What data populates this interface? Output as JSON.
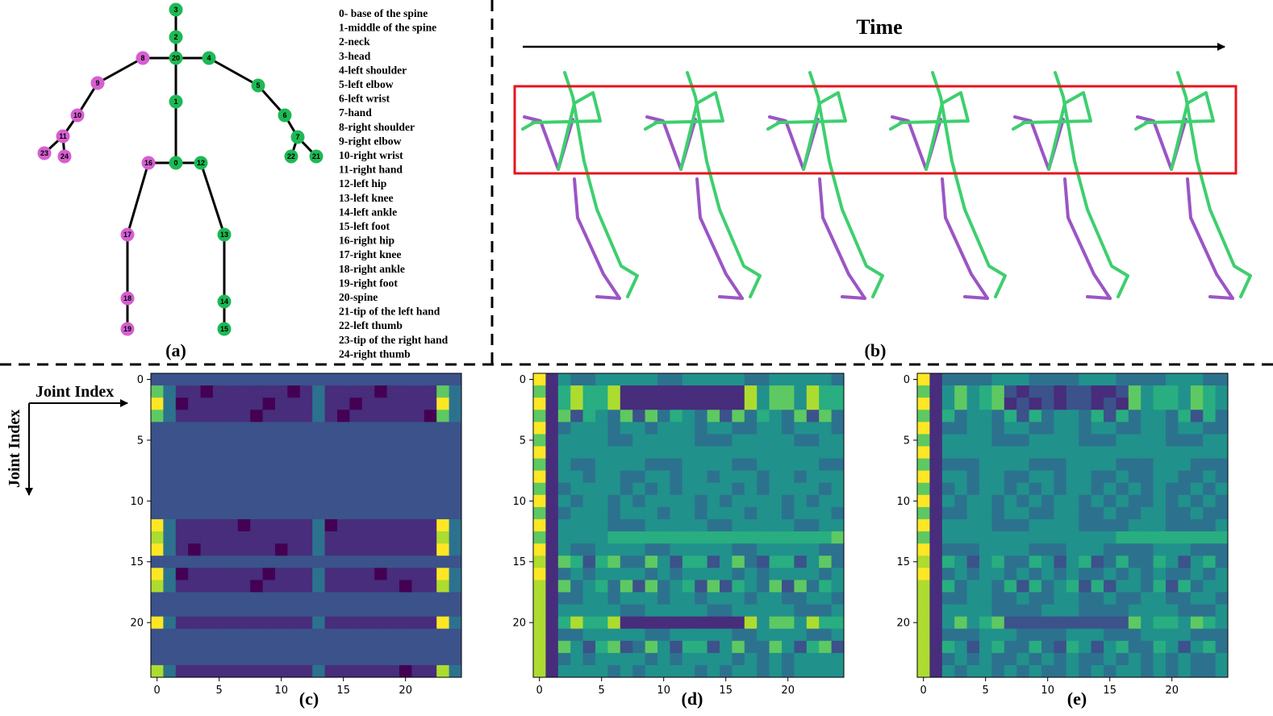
{
  "colors": {
    "green_joint": "#1db954",
    "pink_joint": "#d65fd1",
    "bone": "#000000",
    "stick_green": "#3ecf6e",
    "stick_purple": "#9b55c4",
    "highlight_box": "#e8141b",
    "divider": "#000000"
  },
  "panel_a": {
    "label": "(a)",
    "joints": [
      {
        "id": "0",
        "side": "center"
      },
      {
        "id": "1",
        "side": "center"
      },
      {
        "id": "2",
        "side": "center"
      },
      {
        "id": "3",
        "side": "center"
      },
      {
        "id": "4",
        "side": "left"
      },
      {
        "id": "5",
        "side": "left"
      },
      {
        "id": "6",
        "side": "left"
      },
      {
        "id": "7",
        "side": "left"
      },
      {
        "id": "8",
        "side": "right"
      },
      {
        "id": "9",
        "side": "right"
      },
      {
        "id": "10",
        "side": "right"
      },
      {
        "id": "11",
        "side": "right"
      },
      {
        "id": "12",
        "side": "left"
      },
      {
        "id": "13",
        "side": "left"
      },
      {
        "id": "14",
        "side": "left"
      },
      {
        "id": "15",
        "side": "left"
      },
      {
        "id": "16",
        "side": "right"
      },
      {
        "id": "17",
        "side": "right"
      },
      {
        "id": "18",
        "side": "right"
      },
      {
        "id": "19",
        "side": "right"
      },
      {
        "id": "20",
        "side": "center"
      },
      {
        "id": "21",
        "side": "left"
      },
      {
        "id": "22",
        "side": "left"
      },
      {
        "id": "23",
        "side": "right"
      },
      {
        "id": "24",
        "side": "right"
      }
    ],
    "legend": [
      "0- base of the spine",
      "1-middle of the spine",
      "2-neck",
      "3-head",
      "4-left shoulder",
      "5-left elbow",
      "6-left wrist",
      "7-hand",
      "8-right shoulder",
      "9-right elbow",
      "10-right wrist",
      "11-right hand",
      "12-left hip",
      "13-left knee",
      "14-left ankle",
      "15-left foot",
      "16-right hip",
      "17-right knee",
      "18-right ankle",
      "19-right foot",
      "20-spine",
      "21-tip of the left hand",
      "22-left thumb",
      "23-tip of the right hand",
      "24-right thumb"
    ]
  },
  "panel_b": {
    "label": "(b)",
    "time_label": "Time",
    "frame_count": 6
  },
  "heatmaps": {
    "axis_label_x": "Joint Index",
    "axis_label_y": "Joint Index",
    "x_ticks": [
      "0",
      "5",
      "10",
      "15",
      "20"
    ],
    "y_ticks": [
      "0",
      "5",
      "10",
      "15",
      "20"
    ],
    "panels": [
      {
        "label": "(c)"
      },
      {
        "label": "(d)"
      },
      {
        "label": "(e)"
      }
    ]
  }
}
